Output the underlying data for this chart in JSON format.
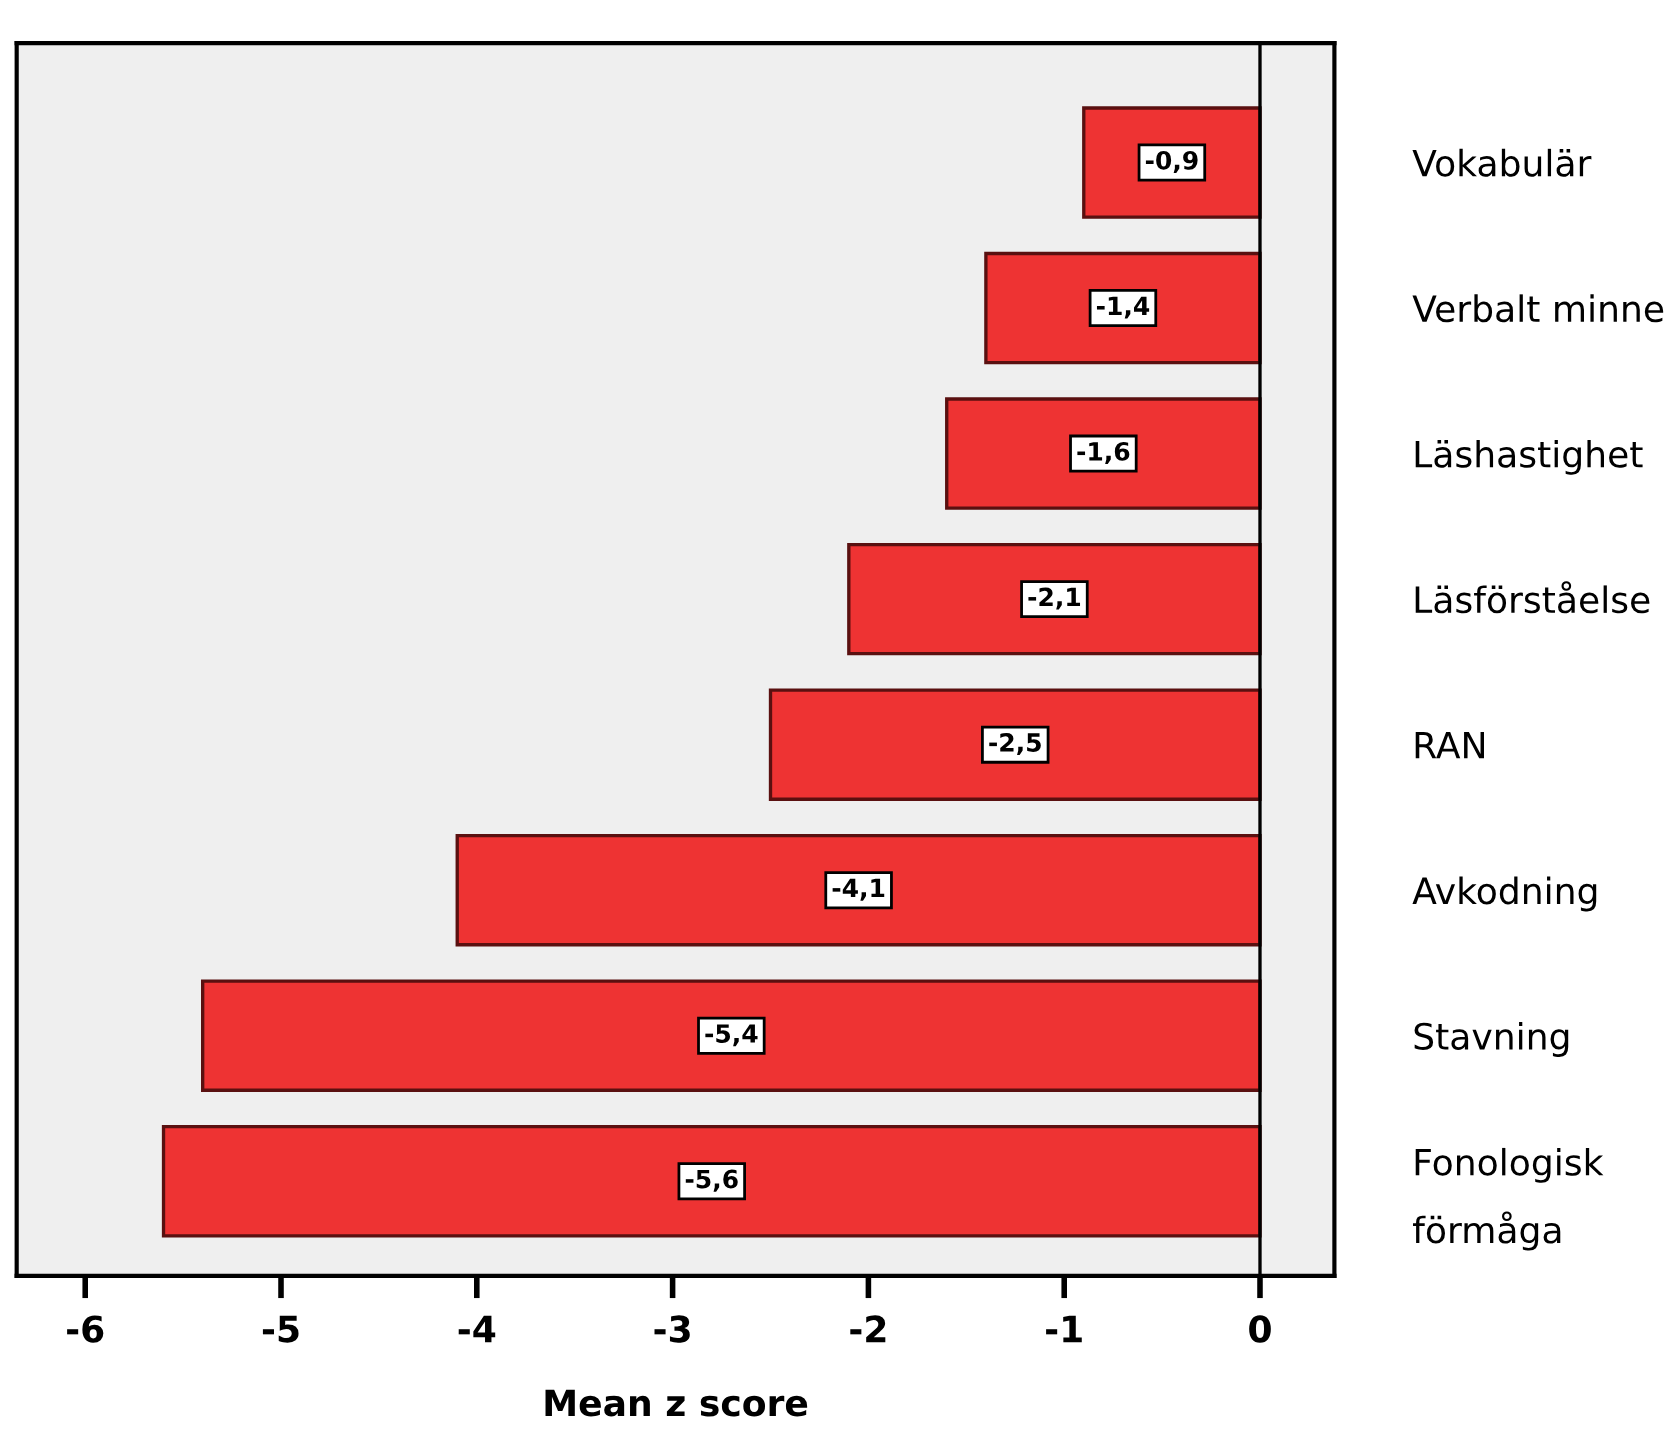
{
  "chart_data": {
    "type": "bar",
    "orientation": "horizontal",
    "xlabel": "Mean z score",
    "categories": [
      "Vokabulär",
      "Verbalt minne",
      "Läshastighet",
      "Läsförståelse",
      "RAN",
      "Avkodning",
      "Stavning",
      "Fonologisk\nförmåga"
    ],
    "values": [
      -0.9,
      -1.4,
      -1.6,
      -2.1,
      -2.5,
      -4.1,
      -5.4,
      -5.6
    ],
    "value_labels": [
      "-0,9",
      "-1,4",
      "-1,6",
      "-2,1",
      "-2,5",
      "-4,1",
      "-5,4",
      "-5,6"
    ],
    "color": "#ee3333",
    "xlim": [
      -6.35,
      0.38
    ],
    "xticks": [
      -6,
      -5,
      -4,
      -3,
      -2,
      -1,
      0
    ],
    "ref_lines": [
      {
        "axis": "x",
        "value": 0,
        "color": "#000000"
      }
    ],
    "grid": false,
    "legend": false
  }
}
